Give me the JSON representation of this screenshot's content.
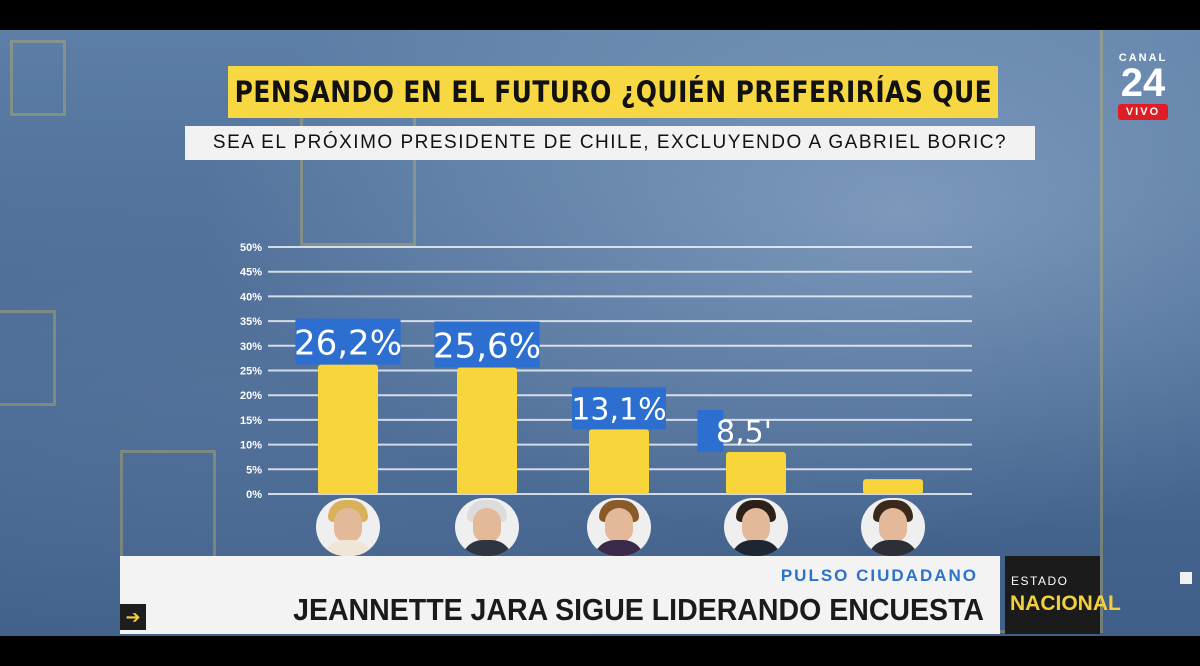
{
  "header": {
    "title": "PENSANDO EN EL FUTURO ¿QUIÉN PREFERIRÍAS QUE",
    "subtitle": "SEA EL PRÓXIMO PRESIDENTE DE CHILE, EXCLUYENDO A GABRIEL BORIC?"
  },
  "logo": {
    "brand": "CANAL",
    "number": "24",
    "live": "VIVO"
  },
  "colors": {
    "bar": "#f9d53c",
    "label_bg": "#2d6fd0",
    "title_band": "#f7d742",
    "accent_blue": "#2a73c9",
    "live_red": "#e01d26"
  },
  "chart_data": {
    "type": "bar",
    "title": "PENSANDO EN EL FUTURO ¿QUIÉN PREFERIRÍAS QUE",
    "subtitle": "SEA EL PRÓXIMO PRESIDENTE DE CHILE, EXCLUYENDO A GABRIEL BORIC?",
    "xlabel": "",
    "ylabel": "",
    "ylim": [
      0,
      50
    ],
    "yticks": [
      "0%",
      "5%",
      "10%",
      "15%",
      "20%",
      "25%",
      "30%",
      "35%",
      "40%",
      "45%",
      "50%"
    ],
    "grid": true,
    "categories": [
      "",
      "",
      "",
      "",
      ""
    ],
    "values": [
      26.2,
      25.6,
      13.1,
      8.5,
      3.0
    ],
    "value_labels": [
      "26,2%",
      "25,6%",
      "13,1%",
      "8,5'",
      ""
    ]
  },
  "avatars": [
    {
      "icon": "candidate-1-avatar",
      "hair": "#d8b15a",
      "body": "#f0e6d8"
    },
    {
      "icon": "candidate-2-avatar",
      "hair": "#dcdcdc",
      "body": "#2e3440"
    },
    {
      "icon": "candidate-3-avatar",
      "hair": "#8a5a2b",
      "body": "#3a2a4a"
    },
    {
      "icon": "candidate-4-avatar",
      "hair": "#2b2118",
      "body": "#1f2633"
    },
    {
      "icon": "candidate-5-avatar",
      "hair": "#3a2a1e",
      "body": "#2c2f36"
    }
  ],
  "lower_third": {
    "kicker": "PULSO CIUDADANO",
    "headline": "JEANNETTE JARA SIGUE LIDERANDO ENCUESTA",
    "arrow": "➔"
  },
  "program": {
    "top": "ESTADO",
    "bottom": "NACIONAL"
  }
}
